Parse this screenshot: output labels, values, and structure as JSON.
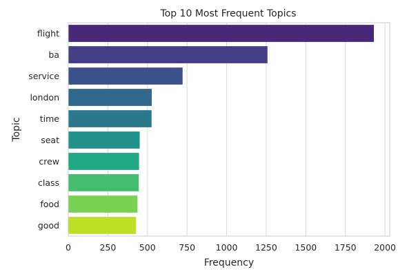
{
  "chart_data": {
    "type": "bar",
    "orientation": "horizontal",
    "title": "Top 10 Most Frequent Topics",
    "xlabel": "Frequency",
    "ylabel": "Topic",
    "categories": [
      "flight",
      "ba",
      "service",
      "london",
      "time",
      "seat",
      "crew",
      "class",
      "food",
      "good"
    ],
    "values": [
      1930,
      1258,
      722,
      527,
      526,
      451,
      447,
      445,
      437,
      428
    ],
    "xlim": [
      0,
      2030
    ],
    "xticks": [
      0,
      250,
      500,
      750,
      1000,
      1250,
      1500,
      1750,
      2000
    ],
    "grid": "vertical",
    "colors": [
      "#482878",
      "#433e85",
      "#3b528b",
      "#31688e",
      "#2a788e",
      "#21918c",
      "#22a884",
      "#44bf70",
      "#7ad151",
      "#bddf26"
    ]
  }
}
